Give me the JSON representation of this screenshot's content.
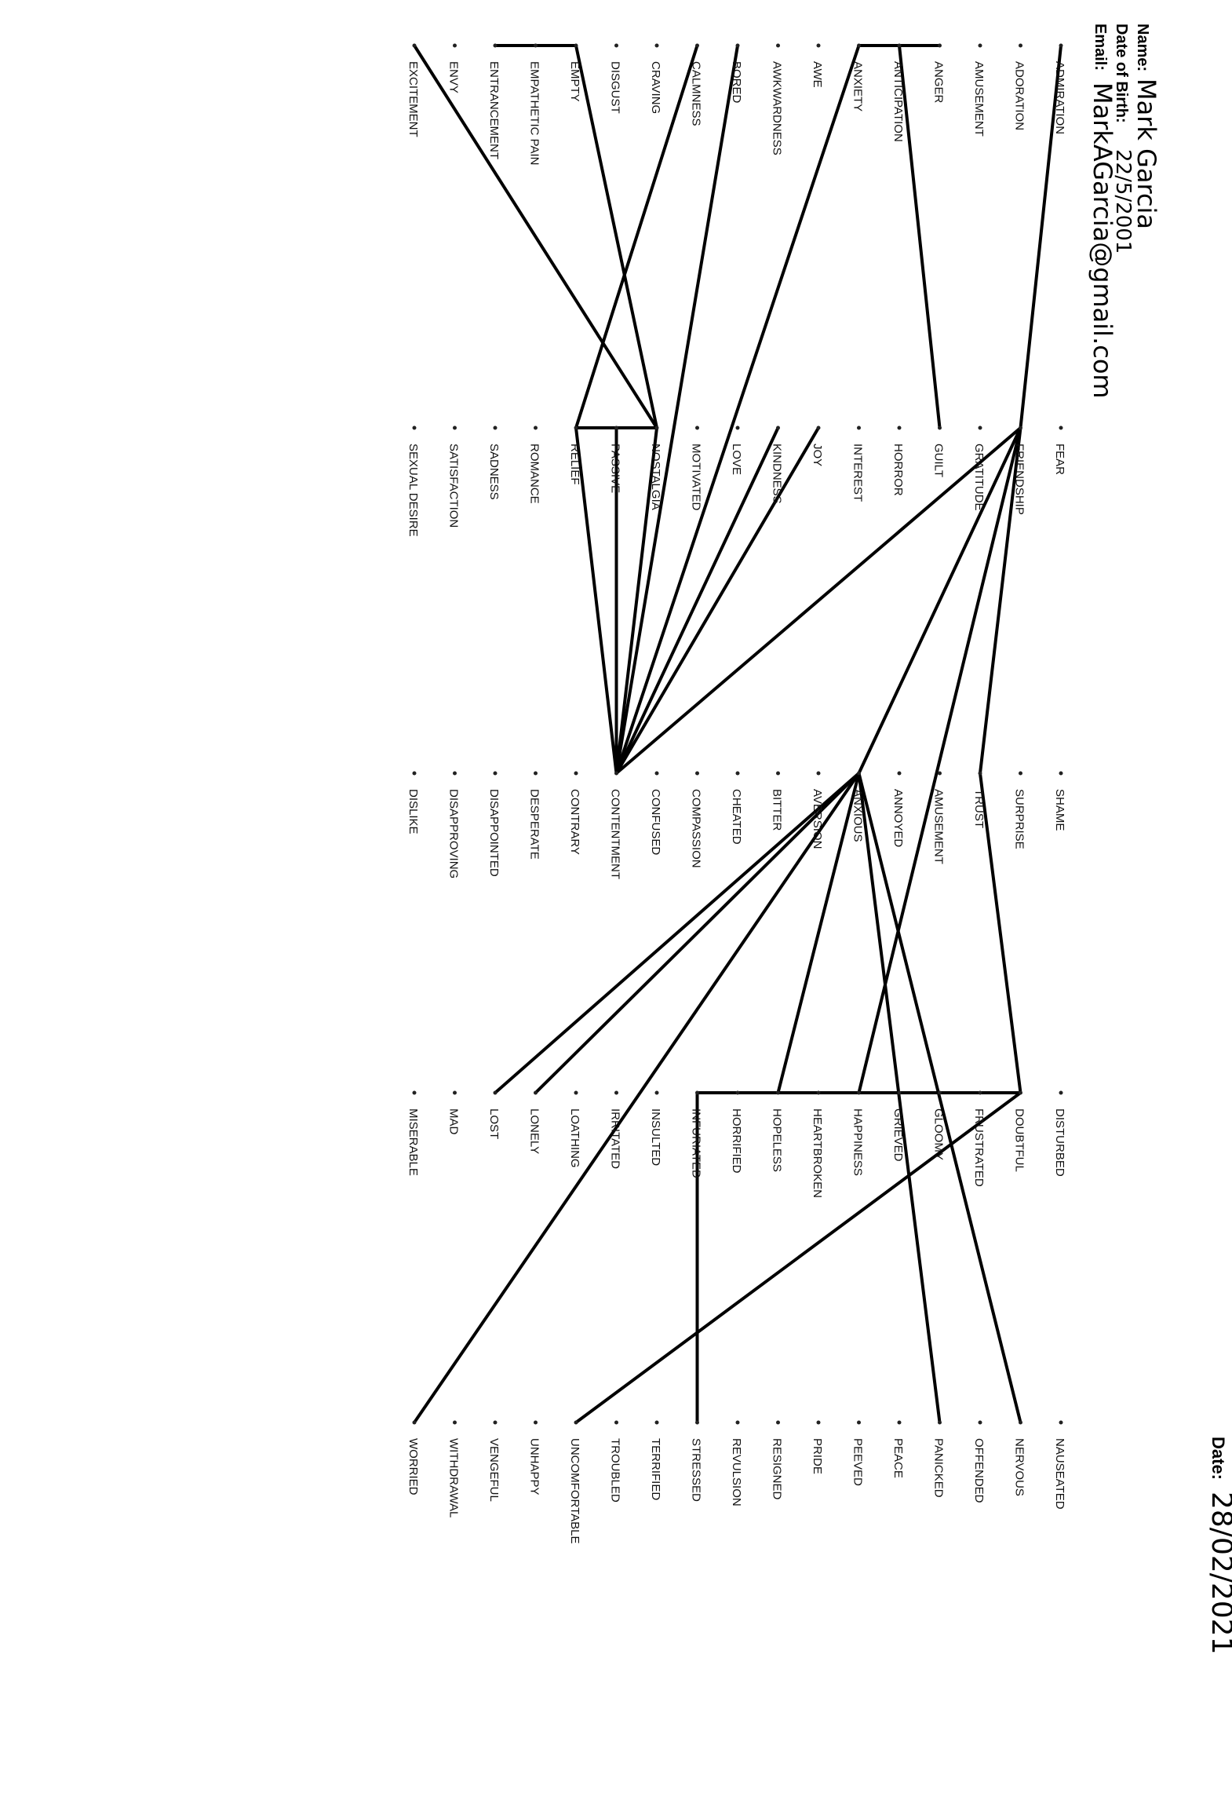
{
  "header": {
    "name_label": "Name:",
    "name_value": "Mark Garcia",
    "dob_label": "Date of Birth:",
    "dob_value": "22/5/2001",
    "email_label": "Email:",
    "email_value": "MarkAGarcia@gmail.com",
    "date_label": "Date:",
    "date_value": "28/02/2021"
  },
  "columns": [
    [
      "ADMIRATION",
      "ADORATION",
      "AMUSEMENT",
      "ANGER",
      "ANTICIPATION",
      "ANXIETY",
      "AWE",
      "AWKWARDNESS",
      "BORED",
      "CALMNESS",
      "CRAVING",
      "DISGUST",
      "EMPTY",
      "EMPATHETIC PAIN",
      "ENTRANCEMENT",
      "ENVY",
      "EXCITEMENT"
    ],
    [
      "FEAR",
      "FRIENDSHIP",
      "GRATITUDE",
      "GUILT",
      "HORROR",
      "INTEREST",
      "JOY",
      "KINDNESS",
      "LOVE",
      "MOTIVATED",
      "NOSTALGIA",
      "PASSIVE",
      "RELIEF",
      "ROMANCE",
      "SADNESS",
      "SATISFACTION",
      "SEXUAL DESIRE"
    ],
    [
      "SHAME",
      "SURPRISE",
      "TRUST",
      "AMUSEMENT",
      "ANNOYED",
      "ANXIOUS",
      "AVERSION",
      "BITTER",
      "CHEATED",
      "COMPASSION",
      "CONFUSED",
      "CONTENTMENT",
      "CONTRARY",
      "DESPERATE",
      "DISAPPOINTED",
      "DISAPPROVING",
      "DISLIKE"
    ],
    [
      "DISTURBED",
      "DOUBTFUL",
      "FRUSTRATED",
      "GLOOMY",
      "GRIEVED",
      "HAPPINESS",
      "HEARTBROKEN",
      "HOPELESS",
      "HORRIFIED",
      "INFURIATED",
      "INSULTED",
      "IRRITATED",
      "LOATHING",
      "LONELY",
      "LOST",
      "MAD",
      "MISERABLE"
    ],
    [
      "NAUSEATED",
      "NERVOUS",
      "OFFENDED",
      "PANICKED",
      "PEACE",
      "PEEVED",
      "PRIDE",
      "RESIGNED",
      "REVULSION",
      "STRESSED",
      "TERRIFIED",
      "TROUBLED",
      "UNCOMFORTABLE",
      "UNHAPPY",
      "VENGEFUL",
      "WITHDRAWAL",
      "WORRIED"
    ]
  ],
  "connections": [
    [
      "0.0",
      "1.1"
    ],
    [
      "0.3",
      "0.5"
    ],
    [
      "0.4",
      "1.3"
    ],
    [
      "0.9",
      "1.12"
    ],
    [
      "0.12",
      "1.10"
    ],
    [
      "0.12",
      "0.14"
    ],
    [
      "0.16",
      "1.10"
    ],
    [
      "1.10",
      "1.11"
    ],
    [
      "1.11",
      "1.12"
    ],
    [
      "1.10",
      "2.11"
    ],
    [
      "1.11",
      "2.11"
    ],
    [
      "1.12",
      "2.11"
    ],
    [
      "0.5",
      "2.11"
    ],
    [
      "0.8",
      "2.11"
    ],
    [
      "1.6",
      "2.11"
    ],
    [
      "1.7",
      "2.11"
    ],
    [
      "1.1",
      "2.11"
    ],
    [
      "1.1",
      "2.2"
    ],
    [
      "2.2",
      "3.1"
    ],
    [
      "1.1",
      "3.5"
    ],
    [
      "1.1",
      "2.5"
    ],
    [
      "2.5",
      "4.1"
    ],
    [
      "2.5",
      "4.3"
    ],
    [
      "2.5",
      "3.7"
    ],
    [
      "2.5",
      "3.13"
    ],
    [
      "2.5",
      "3.14"
    ],
    [
      "2.5",
      "4.16"
    ],
    [
      "3.1",
      "4.12"
    ],
    [
      "3.9",
      "4.9"
    ],
    [
      "3.9",
      "3.1"
    ]
  ]
}
